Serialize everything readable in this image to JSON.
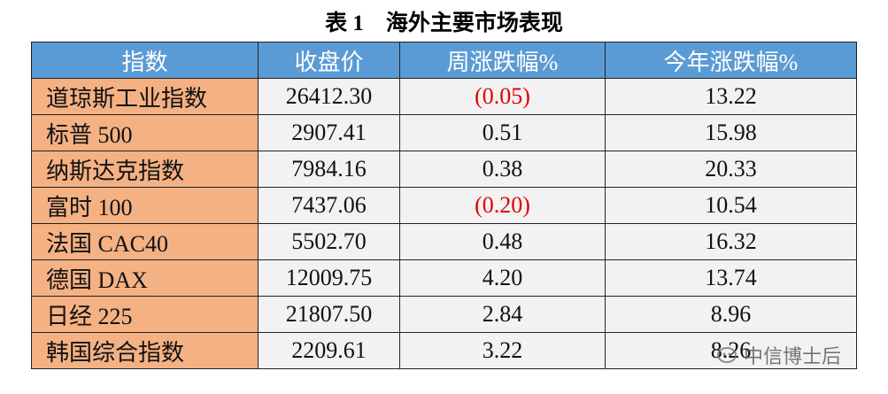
{
  "title": "表 1　海外主要市场表现",
  "table": {
    "header": [
      "指数",
      "收盘价",
      "周涨跌幅%",
      "今年涨跌幅%"
    ],
    "rows": [
      [
        "道琼斯工业指数",
        "26412.30",
        "(0.05)",
        "13.22"
      ],
      [
        "标普 500",
        "2907.41",
        "0.51",
        "15.98"
      ],
      [
        "纳斯达克指数",
        "7984.16",
        "0.38",
        "20.33"
      ],
      [
        "富时 100",
        "7437.06",
        "(0.20)",
        "10.54"
      ],
      [
        "法国 CAC40",
        "5502.70",
        "0.48",
        "16.32"
      ],
      [
        "德国 DAX",
        "12009.75",
        "4.20",
        "13.74"
      ],
      [
        "日经 225",
        "21807.50",
        "2.84",
        "8.96"
      ],
      [
        "韩国综合指数",
        "2209.61",
        "3.22",
        "8.26"
      ]
    ]
  },
  "watermark": "中信博士后"
}
